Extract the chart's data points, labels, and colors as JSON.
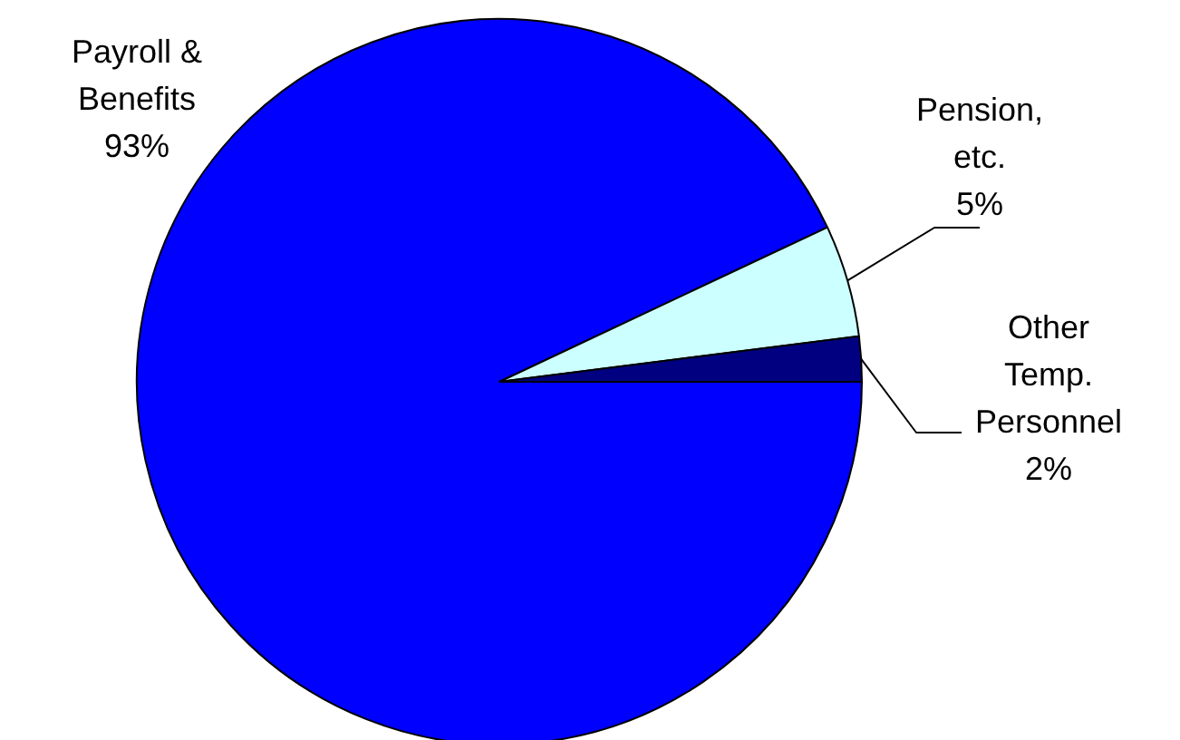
{
  "chart_data": {
    "type": "pie",
    "categories": [
      "Payroll &\nBenefits",
      "Pension,\netc.",
      "Other\nTemp.\nPersonnel"
    ],
    "values": [
      93,
      5,
      2
    ],
    "colors": [
      "#0000ff",
      "#ccffff",
      "#000080"
    ],
    "value_labels": [
      "93%",
      "5%",
      "2%"
    ]
  }
}
